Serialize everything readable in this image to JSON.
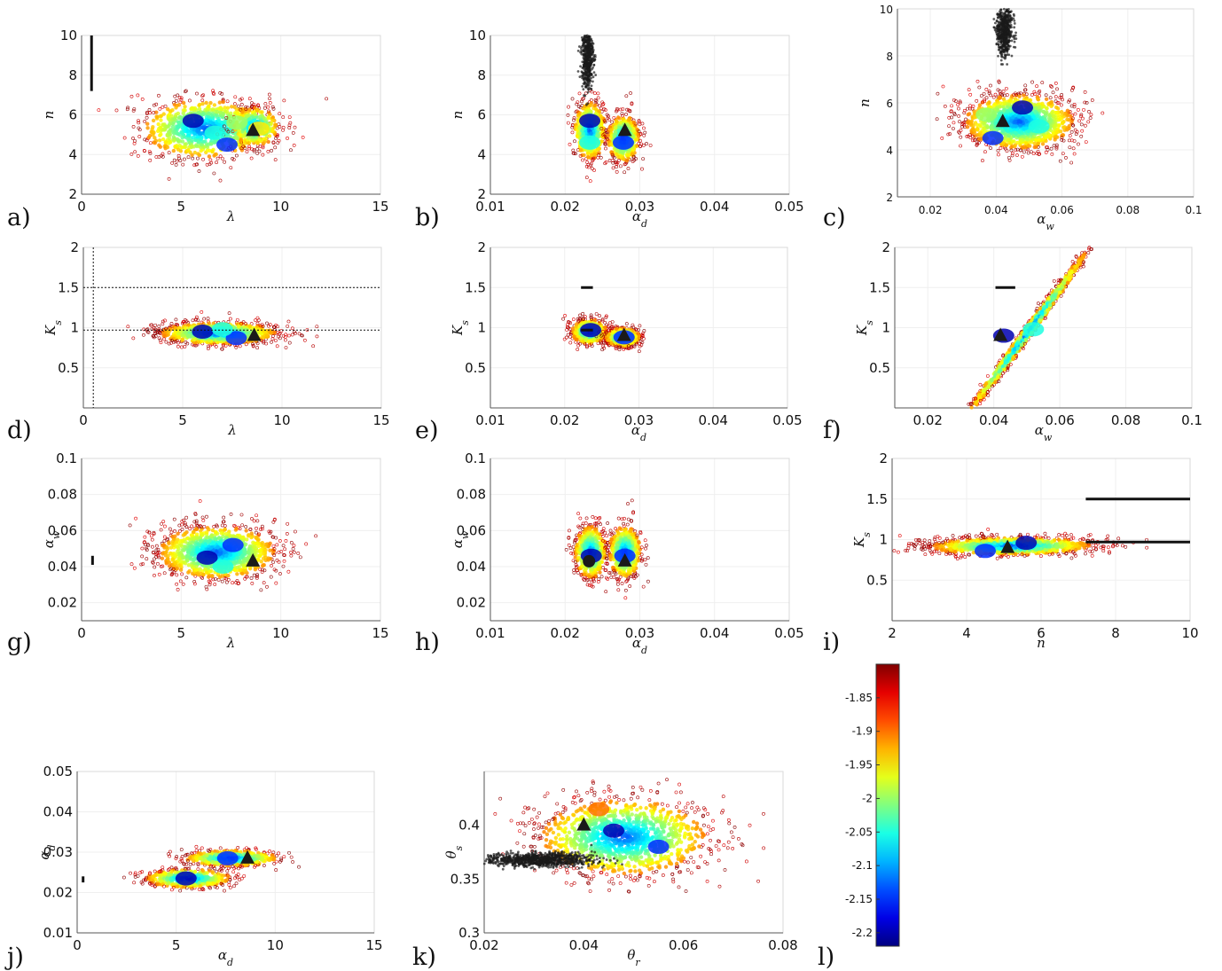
{
  "chart_data": [
    {
      "type": "scatter",
      "panel_label": "a)",
      "xlabel": "λ",
      "ylabel": "n",
      "xlim": [
        0,
        15
      ],
      "ylim": [
        2,
        10
      ],
      "xticks": [
        "0",
        "5",
        "10",
        "15"
      ],
      "yticks": [
        "2",
        "4",
        "6",
        "8",
        "10"
      ],
      "grid": true,
      "clouds": [
        {
          "cx": 6.2,
          "cy": 5.3,
          "sx": 1.6,
          "sy": 0.75,
          "n": 950
        },
        {
          "cx": 8.7,
          "cy": 5.4,
          "sx": 0.6,
          "sy": 0.5,
          "n": 300
        }
      ],
      "cores": [
        {
          "x": 5.6,
          "y": 5.7,
          "value": -2.2
        },
        {
          "x": 7.3,
          "y": 4.5,
          "value": -2.15
        },
        {
          "x": 6.7,
          "y": 5.1,
          "value": -2.05
        },
        {
          "x": 7.8,
          "y": 5.6,
          "value": -2.0
        },
        {
          "x": 8.9,
          "y": 5.3,
          "value": -1.95
        }
      ],
      "black_samples": [
        {
          "type": "segment",
          "x": [
            0.5,
            0.5
          ],
          "y": [
            7.2,
            10
          ]
        }
      ],
      "marker": {
        "shape": "triangle",
        "x": 8.6,
        "y": 5.2
      }
    },
    {
      "type": "scatter",
      "panel_label": "b)",
      "xlabel": "α_d",
      "ylabel": "n",
      "xlim": [
        0.01,
        0.05
      ],
      "ylim": [
        2,
        10
      ],
      "xticks": [
        "0.01",
        "0.02",
        "0.03",
        "0.04",
        "0.05"
      ],
      "yticks": [
        "2",
        "4",
        "6",
        "8",
        "10"
      ],
      "grid": true,
      "clouds": [
        {
          "cx": 0.0233,
          "cy": 5.2,
          "sx": 0.0011,
          "sy": 0.75,
          "n": 520
        },
        {
          "cx": 0.0278,
          "cy": 4.8,
          "sx": 0.0011,
          "sy": 0.6,
          "n": 520
        }
      ],
      "cores": [
        {
          "x": 0.0233,
          "y": 5.7,
          "value": -2.2
        },
        {
          "x": 0.0278,
          "y": 4.6,
          "value": -2.15
        },
        {
          "x": 0.0233,
          "y": 4.6,
          "value": -2.05
        }
      ],
      "black_samples": [
        {
          "type": "cloud",
          "cx": 0.023,
          "cy": 9,
          "sx": 0.0004,
          "sy": 0.85,
          "n": 500
        }
      ],
      "marker": {
        "shape": "triangle",
        "x": 0.028,
        "y": 5.2
      }
    },
    {
      "type": "scatter",
      "panel_label": "c)",
      "xlabel": "α_w",
      "ylabel": "n",
      "xlim": [
        0.01,
        0.1
      ],
      "ylim": [
        2,
        10
      ],
      "xticks": [
        "0.02",
        "0.04",
        "0.06",
        "0.08",
        "0.1"
      ],
      "yticks": [
        "2",
        "4",
        "6",
        "8",
        "10"
      ],
      "grid": true,
      "clouds": [
        {
          "cx": 0.047,
          "cy": 5.2,
          "sx": 0.0085,
          "sy": 0.6,
          "n": 1200
        }
      ],
      "cores": [
        {
          "x": 0.048,
          "y": 5.8,
          "value": -2.2
        },
        {
          "x": 0.039,
          "y": 4.5,
          "value": -2.15
        },
        {
          "x": 0.053,
          "y": 5.0,
          "value": -2.05
        },
        {
          "x": 0.037,
          "y": 5.5,
          "value": -2.0
        }
      ],
      "black_samples": [
        {
          "type": "cloud",
          "cx": 0.0425,
          "cy": 9.1,
          "sx": 0.0012,
          "sy": 0.55,
          "n": 550
        }
      ],
      "marker": {
        "shape": "triangle",
        "x": 0.042,
        "y": 5.2
      }
    },
    {
      "type": "scatter",
      "panel_label": "d)",
      "xlabel": "λ",
      "ylabel": "K_s",
      "xlim": [
        0,
        15
      ],
      "ylim": [
        0,
        2
      ],
      "xticks": [
        "0",
        "5",
        "10",
        "15"
      ],
      "yticks": [
        "0.5",
        "1",
        "1.5",
        "2"
      ],
      "grid": true,
      "clouds": [
        {
          "cx": 6.8,
          "cy": 0.93,
          "sx": 1.5,
          "sy": 0.07,
          "n": 950
        }
      ],
      "cores": [
        {
          "x": 6.0,
          "y": 0.95,
          "value": -2.2
        },
        {
          "x": 7.7,
          "y": 0.87,
          "value": -2.15
        },
        {
          "x": 7.0,
          "y": 0.98,
          "value": -2.05
        }
      ],
      "black_samples": [
        {
          "type": "vline",
          "x": 0.5
        },
        {
          "type": "hline",
          "y": 1.5
        },
        {
          "type": "hline",
          "y": 0.97
        }
      ],
      "marker": {
        "shape": "triangle",
        "x": 8.6,
        "y": 0.9
      }
    },
    {
      "type": "scatter",
      "panel_label": "e)",
      "xlabel": "α_d",
      "ylabel": "K_s",
      "xlim": [
        0.01,
        0.05
      ],
      "ylim": [
        0,
        2
      ],
      "xticks": [
        "0.01",
        "0.02",
        "0.03",
        "0.04",
        "0.05"
      ],
      "yticks": [
        "0.5",
        "1",
        "1.5",
        "2"
      ],
      "grid": true,
      "clouds": [
        {
          "cx": 0.0233,
          "cy": 0.95,
          "sx": 0.0012,
          "sy": 0.08,
          "n": 480
        },
        {
          "cx": 0.0278,
          "cy": 0.88,
          "sx": 0.0012,
          "sy": 0.06,
          "n": 480
        }
      ],
      "cores": [
        {
          "x": 0.0235,
          "y": 0.97,
          "value": -2.2
        },
        {
          "x": 0.028,
          "y": 0.88,
          "value": -2.15
        }
      ],
      "black_samples": [
        {
          "type": "segment",
          "x": [
            0.0222,
            0.0238
          ],
          "y": [
            1.5,
            1.5
          ]
        },
        {
          "type": "segment",
          "x": [
            0.0222,
            0.0238
          ],
          "y": [
            0.97,
            0.97
          ]
        }
      ],
      "marker": {
        "shape": "triangle",
        "x": 0.028,
        "y": 0.9
      }
    },
    {
      "type": "scatter",
      "panel_label": "f)",
      "xlabel": "α_w",
      "ylabel": "K_s",
      "xlim": [
        0.01,
        0.1
      ],
      "ylim": [
        0,
        2
      ],
      "xticks": [
        "0.02",
        "0.04",
        "0.06",
        "0.08",
        "0.1"
      ],
      "yticks": [
        "0.5",
        "1",
        "1.5",
        "2"
      ],
      "grid": true,
      "clouds": [
        {
          "cx": 0.05,
          "cy": 0.93,
          "sx": 0.0095,
          "sy": 0.05,
          "n": 1100,
          "slope": 10
        }
      ],
      "cores": [
        {
          "x": 0.043,
          "y": 0.9,
          "value": -2.2
        },
        {
          "x": 0.052,
          "y": 0.98,
          "value": -2.05
        }
      ],
      "black_samples": [
        {
          "type": "segment",
          "x": [
            0.0405,
            0.0465
          ],
          "y": [
            1.5,
            1.5
          ]
        }
      ],
      "marker": {
        "shape": "triangle",
        "x": 0.042,
        "y": 0.9
      }
    },
    {
      "type": "scatter",
      "panel_label": "g)",
      "xlabel": "λ",
      "ylabel": "α_w",
      "xlim": [
        0,
        15
      ],
      "ylim": [
        0.01,
        0.1
      ],
      "xticks": [
        "0",
        "5",
        "10",
        "15"
      ],
      "yticks": [
        "0.02",
        "0.04",
        "0.06",
        "0.08",
        "0.1"
      ],
      "grid": true,
      "clouds": [
        {
          "cx": 6.8,
          "cy": 0.048,
          "sx": 1.5,
          "sy": 0.0075,
          "n": 1200
        }
      ],
      "cores": [
        {
          "x": 6.3,
          "y": 0.045,
          "value": -2.2
        },
        {
          "x": 7.6,
          "y": 0.052,
          "value": -2.15
        },
        {
          "x": 7.1,
          "y": 0.04,
          "value": -2.05
        }
      ],
      "black_samples": [
        {
          "type": "segment",
          "x": [
            0.55,
            0.55
          ],
          "y": [
            0.041,
            0.046
          ]
        }
      ],
      "marker": {
        "shape": "triangle",
        "x": 8.6,
        "y": 0.043
      }
    },
    {
      "type": "scatter",
      "panel_label": "h)",
      "xlabel": "α_d",
      "ylabel": "α_w",
      "xlim": [
        0.01,
        0.05
      ],
      "ylim": [
        0.01,
        0.1
      ],
      "xticks": [
        "0.01",
        "0.02",
        "0.03",
        "0.04",
        "0.05"
      ],
      "yticks": [
        "0.02",
        "0.04",
        "0.06",
        "0.08",
        "0.1"
      ],
      "grid": true,
      "clouds": [
        {
          "cx": 0.0234,
          "cy": 0.048,
          "sx": 0.0011,
          "sy": 0.0075,
          "n": 520
        },
        {
          "cx": 0.028,
          "cy": 0.048,
          "sx": 0.0011,
          "sy": 0.0075,
          "n": 520
        }
      ],
      "cores": [
        {
          "x": 0.0235,
          "y": 0.046,
          "value": -2.2
        },
        {
          "x": 0.028,
          "y": 0.046,
          "value": -2.15
        }
      ],
      "black_samples": [],
      "markers": [
        {
          "shape": "circle",
          "x": 0.0232,
          "y": 0.043
        },
        {
          "shape": "triangle",
          "x": 0.028,
          "y": 0.043
        }
      ]
    },
    {
      "type": "scatter",
      "panel_label": "i)",
      "xlabel": "n",
      "ylabel": "K_s",
      "xlim": [
        2,
        10
      ],
      "ylim": [
        0,
        2
      ],
      "xticks": [
        "2",
        "4",
        "6",
        "8",
        "10"
      ],
      "yticks": [
        "0.5",
        "1",
        "1.5",
        "2"
      ],
      "grid": true,
      "clouds": [
        {
          "cx": 5.2,
          "cy": 0.92,
          "sx": 1.1,
          "sy": 0.055,
          "n": 1100,
          "slope": 0.05
        }
      ],
      "cores": [
        {
          "x": 5.6,
          "y": 0.96,
          "value": -2.2
        },
        {
          "x": 4.5,
          "y": 0.86,
          "value": -2.15
        }
      ],
      "black_samples": [
        {
          "type": "segment",
          "x": [
            7.2,
            10
          ],
          "y": [
            1.5,
            1.5
          ]
        },
        {
          "type": "segment",
          "x": [
            7.2,
            10
          ],
          "y": [
            0.97,
            0.97
          ]
        }
      ],
      "marker": {
        "shape": "triangle",
        "x": 5.1,
        "y": 0.9
      }
    },
    {
      "type": "scatter",
      "panel_label": "j)",
      "xlabel": "α_d",
      "ylabel": "α_d",
      "xlim": [
        0,
        15
      ],
      "ylim": [
        0.01,
        0.05
      ],
      "xticks": [
        "0",
        "5",
        "10",
        "15"
      ],
      "yticks": [
        "0.01",
        "0.02",
        "0.03",
        "0.04",
        "0.05"
      ],
      "grid": true,
      "clouds": [
        {
          "cx": 5.6,
          "cy": 0.0235,
          "sx": 1.1,
          "sy": 0.0012,
          "n": 500
        },
        {
          "cx": 7.8,
          "cy": 0.0285,
          "sx": 1.2,
          "sy": 0.001,
          "n": 500
        }
      ],
      "cores": [
        {
          "x": 5.5,
          "y": 0.0235,
          "value": -2.2
        },
        {
          "x": 7.6,
          "y": 0.0285,
          "value": -2.15
        }
      ],
      "black_samples": [
        {
          "type": "segment",
          "x": [
            0.3,
            0.3
          ],
          "y": [
            0.0225,
            0.024
          ]
        }
      ],
      "marker": {
        "shape": "triangle",
        "x": 8.6,
        "y": 0.0285
      }
    },
    {
      "type": "scatter",
      "panel_label": "k)",
      "xlabel": "θ_r",
      "ylabel": "θ_s",
      "xlim": [
        0.02,
        0.08
      ],
      "ylim": [
        0.3,
        0.45
      ],
      "xticks": [
        "0.02",
        "0.04",
        "0.06",
        "0.08"
      ],
      "yticks": [
        "0.3",
        "0.35",
        "0.4"
      ],
      "grid": false,
      "clouds": [
        {
          "cx": 0.048,
          "cy": 0.389,
          "sx": 0.0085,
          "sy": 0.018,
          "n": 1300
        }
      ],
      "cores": [
        {
          "x": 0.046,
          "y": 0.395,
          "value": -2.2
        },
        {
          "x": 0.055,
          "y": 0.38,
          "value": -2.15
        },
        {
          "x": 0.043,
          "y": 0.415,
          "value": -1.9
        }
      ],
      "black_samples": [
        {
          "type": "cloud",
          "cx": 0.031,
          "cy": 0.368,
          "sx": 0.0055,
          "sy": 0.0032,
          "n": 900
        }
      ],
      "marker": {
        "shape": "triangle",
        "x": 0.04,
        "y": 0.4
      }
    },
    {
      "type": "colorbar",
      "panel_label": "l)",
      "colormap": "jet",
      "range": [
        -2.22,
        -1.8
      ],
      "ticks": [
        "-1.85",
        "-1.9",
        "-1.95",
        "-2",
        "-2.05",
        "-2.1",
        "-2.15",
        "-2.2"
      ],
      "tick_values": [
        -1.85,
        -1.9,
        -1.95,
        -2,
        -2.05,
        -2.1,
        -2.15,
        -2.2
      ]
    }
  ]
}
